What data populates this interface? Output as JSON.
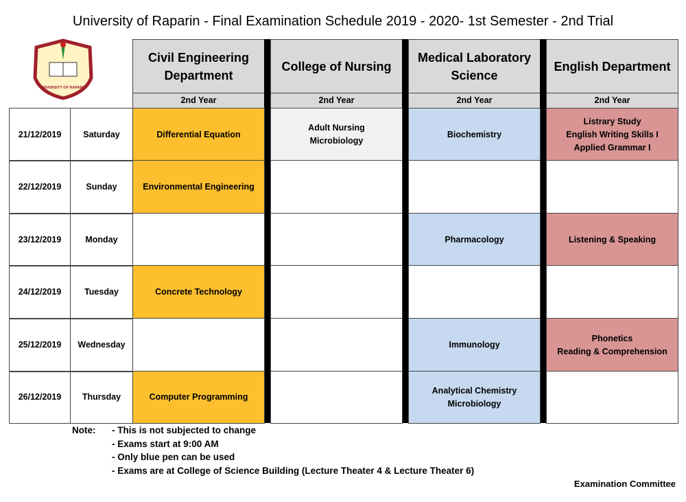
{
  "title": "University of Raparin - Final Examination Schedule 2019 - 2020- 1st Semester - 2nd Trial",
  "logo": {
    "text": "UNIVERSITY OF RAPARIN"
  },
  "departments": [
    {
      "name": [
        "Civil Engineering",
        "Department"
      ],
      "year": "2nd Year",
      "color": "#fdbf2d"
    },
    {
      "name": [
        "College of Nursing"
      ],
      "year": "2nd Year",
      "color": "#f2f2f2"
    },
    {
      "name": [
        "Medical Laboratory",
        "Science"
      ],
      "year": "2nd Year",
      "color": "#c6d9f0"
    },
    {
      "name": [
        "English Department"
      ],
      "year": "2nd Year",
      "color": "#d99594"
    }
  ],
  "rows": [
    {
      "date": "21/12/2019",
      "day": "Saturday",
      "cells": [
        [
          "Differential Equation"
        ],
        [
          "Adult Nursing",
          "Microbiology"
        ],
        [
          "Biochemistry"
        ],
        [
          "Listrary Study",
          "English Writing Skills I",
          "Applied Grammar I"
        ]
      ]
    },
    {
      "date": "22/12/2019",
      "day": "Sunday",
      "cells": [
        [
          "Environmental Engineering"
        ],
        [],
        [],
        []
      ]
    },
    {
      "date": "23/12/2019",
      "day": "Monday",
      "cells": [
        [],
        [],
        [
          "Pharmacology"
        ],
        [
          "Listening & Speaking"
        ]
      ]
    },
    {
      "date": "24/12/2019",
      "day": "Tuesday",
      "cells": [
        [
          "Concrete Technology"
        ],
        [],
        [],
        []
      ]
    },
    {
      "date": "25/12/2019",
      "day": "Wednesday",
      "cells": [
        [],
        [],
        [
          "Immunology"
        ],
        [
          "Phonetics",
          "Reading & Comprehension"
        ]
      ]
    },
    {
      "date": "26/12/2019",
      "day": "Thursday",
      "cells": [
        [
          "Computer Programming"
        ],
        [],
        [
          "Analytical Chemistry",
          "Microbiology"
        ],
        []
      ]
    }
  ],
  "note": {
    "label": "Note:",
    "items": [
      "- This is not subjected to change",
      "- Exams start at 9:00 AM",
      "- Only blue pen can be used",
      "- Exams are at College of Science Building (Lecture Theater 4 & Lecture Theater 6)"
    ]
  },
  "footer": "Examination Committee"
}
